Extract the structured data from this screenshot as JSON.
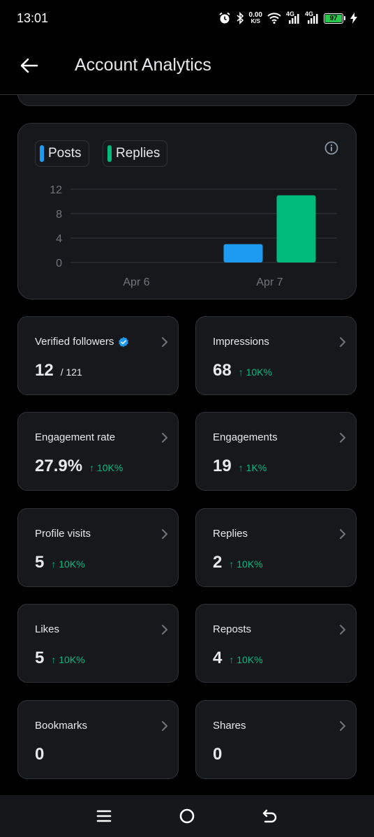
{
  "status_bar": {
    "time": "13:01",
    "net_speed_value": "0.00",
    "net_speed_unit": "K/S",
    "signal_1": "4G",
    "signal_2": "4G",
    "battery_percent": "97",
    "battery_color": "#26c94a"
  },
  "header": {
    "title": "Account Analytics",
    "back_icon": "arrow-left-icon"
  },
  "chart_legend": [
    {
      "label": "Posts",
      "color": "#1d9bf0"
    },
    {
      "label": "Replies",
      "color": "#00ba7c"
    }
  ],
  "chart_data": {
    "type": "bar",
    "categories": [
      "Apr 6",
      "Apr 7"
    ],
    "series": [
      {
        "name": "Posts",
        "color": "#1d9bf0",
        "values": [
          0,
          3
        ]
      },
      {
        "name": "Replies",
        "color": "#00ba7c",
        "values": [
          0,
          11
        ]
      }
    ],
    "yticks": [
      0,
      4,
      8,
      12
    ],
    "ylim": [
      0,
      12
    ],
    "grid": true,
    "legend_position": "top-left"
  },
  "metrics": [
    {
      "label": "Verified followers",
      "value": "12",
      "total": "/ 121",
      "change": "",
      "verified_badge": true
    },
    {
      "label": "Impressions",
      "value": "68",
      "total": "",
      "change": "↑ 10K%"
    },
    {
      "label": "Engagement rate",
      "value": "27.9%",
      "total": "",
      "change": "↑ 10K%"
    },
    {
      "label": "Engagements",
      "value": "19",
      "total": "",
      "change": "↑ 1K%"
    },
    {
      "label": "Profile visits",
      "value": "5",
      "total": "",
      "change": "↑ 10K%"
    },
    {
      "label": "Replies",
      "value": "2",
      "total": "",
      "change": "↑ 10K%"
    },
    {
      "label": "Likes",
      "value": "5",
      "total": "",
      "change": "↑ 10K%"
    },
    {
      "label": "Reposts",
      "value": "4",
      "total": "",
      "change": "↑ 10K%"
    },
    {
      "label": "Bookmarks",
      "value": "0",
      "total": "",
      "change": ""
    },
    {
      "label": "Shares",
      "value": "0",
      "total": "",
      "change": ""
    }
  ],
  "colors": {
    "background": "#000000",
    "card": "#16181c",
    "border": "#2f3336",
    "positive": "#00ba7c",
    "accent": "#1d9bf0"
  },
  "nav": {
    "recents_icon": "menu-icon",
    "home_icon": "home-circle-icon",
    "back_icon": "back-return-icon"
  }
}
